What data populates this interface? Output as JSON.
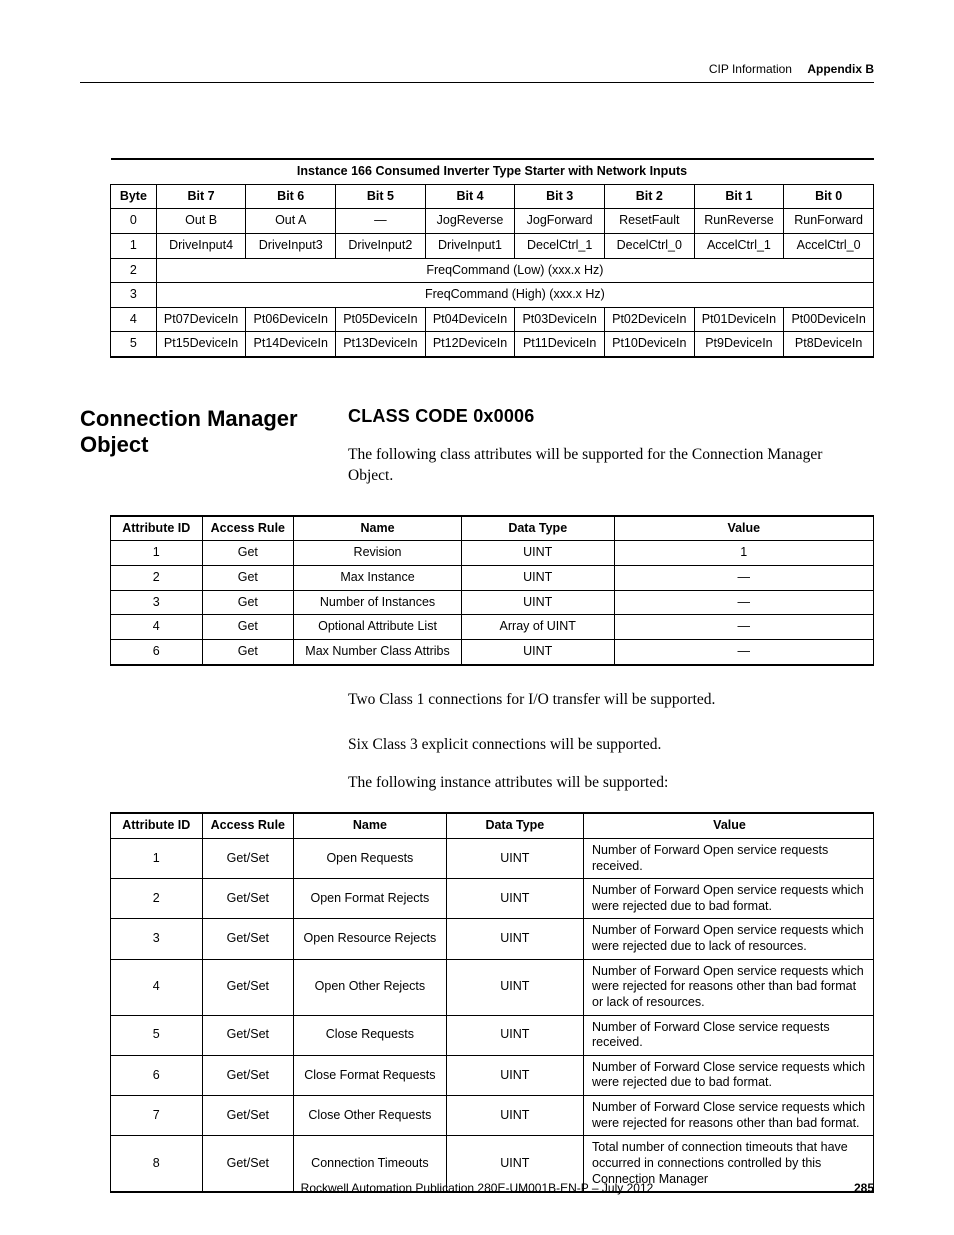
{
  "header": {
    "section": "CIP Information",
    "appendix": "Appendix B"
  },
  "footer": {
    "publication": "Rockwell Automation Publication 280E-UM001B-EN-P – July 2012",
    "page": "285"
  },
  "table1": {
    "title": "Instance 166 Consumed Inverter Type Starter with Network Inputs",
    "cols": [
      "Byte",
      "Bit 7",
      "Bit 6",
      "Bit 5",
      "Bit 4",
      "Bit 3",
      "Bit 2",
      "Bit 1",
      "Bit 0"
    ],
    "rows": [
      {
        "byte": "0",
        "cells": [
          "Out B",
          "Out A",
          "—",
          "JogReverse",
          "JogForward",
          "ResetFault",
          "RunReverse",
          "RunForward"
        ]
      },
      {
        "byte": "1",
        "cells": [
          "DriveInput4",
          "DriveInput3",
          "DriveInput2",
          "DriveInput1",
          "DecelCtrl_1",
          "DecelCtrl_0",
          "AccelCtrl_1",
          "AccelCtrl_0"
        ]
      },
      {
        "byte": "2",
        "span": "FreqCommand (Low) (xxx.x Hz)"
      },
      {
        "byte": "3",
        "span": "FreqCommand (High) (xxx.x Hz)"
      },
      {
        "byte": "4",
        "cells": [
          "Pt07DeviceIn",
          "Pt06DeviceIn",
          "Pt05DeviceIn",
          "Pt04DeviceIn",
          "Pt03DeviceIn",
          "Pt02DeviceIn",
          "Pt01DeviceIn",
          "Pt00DeviceIn"
        ]
      },
      {
        "byte": "5",
        "cells": [
          "Pt15DeviceIn",
          "Pt14DeviceIn",
          "Pt13DeviceIn",
          "Pt12DeviceIn",
          "Pt11DeviceIn",
          "Pt10DeviceIn",
          "Pt9DeviceIn",
          "Pt8DeviceIn"
        ]
      }
    ]
  },
  "section": {
    "left_heading": "Connection Manager Object",
    "class_code": "CLASS CODE 0x0006",
    "intro": "The following class attributes will be supported for the Connection Manager Object."
  },
  "table2": {
    "cols": [
      "Attribute ID",
      "Access Rule",
      "Name",
      "Data Type",
      "Value"
    ],
    "rows": [
      [
        "1",
        "Get",
        "Revision",
        "UINT",
        "1"
      ],
      [
        "2",
        "Get",
        "Max Instance",
        "UINT",
        "—"
      ],
      [
        "3",
        "Get",
        "Number of Instances",
        "UINT",
        "—"
      ],
      [
        "4",
        "Get",
        "Optional Attribute List",
        "Array of UINT",
        "—"
      ],
      [
        "6",
        "Get",
        "Max Number Class Attribs",
        "UINT",
        "—"
      ]
    ]
  },
  "mid_paras": [
    "Two Class 1 connections for I/O transfer will be supported.",
    "Six Class 3 explicit connections will be supported.",
    "The following instance attributes will be supported:"
  ],
  "table3": {
    "cols": [
      "Attribute ID",
      "Access Rule",
      "Name",
      "Data Type",
      "Value"
    ],
    "rows": [
      [
        "1",
        "Get/Set",
        "Open Requests",
        "UINT",
        "Number of Forward Open service requests received."
      ],
      [
        "2",
        "Get/Set",
        "Open Format Rejects",
        "UINT",
        "Number of Forward Open service requests which were rejected due to bad format."
      ],
      [
        "3",
        "Get/Set",
        "Open Resource Rejects",
        "UINT",
        "Number of Forward Open service requests which were rejected due to lack of resources."
      ],
      [
        "4",
        "Get/Set",
        "Open Other Rejects",
        "UINT",
        "Number of Forward Open service requests which were rejected for reasons other than bad format or lack of resources."
      ],
      [
        "5",
        "Get/Set",
        "Close Requests",
        "UINT",
        "Number of Forward Close service requests received."
      ],
      [
        "6",
        "Get/Set",
        "Close Format Requests",
        "UINT",
        "Number of Forward Close service requests which were rejected due to bad format."
      ],
      [
        "7",
        "Get/Set",
        "Close Other Requests",
        "UINT",
        "Number of Forward Close service requests which were rejected for reasons other than bad format."
      ],
      [
        "8",
        "Get/Set",
        "Connection Timeouts",
        "UINT",
        "Total number of connection timeouts that have occurred in connections controlled by this Connection Manager"
      ]
    ]
  }
}
